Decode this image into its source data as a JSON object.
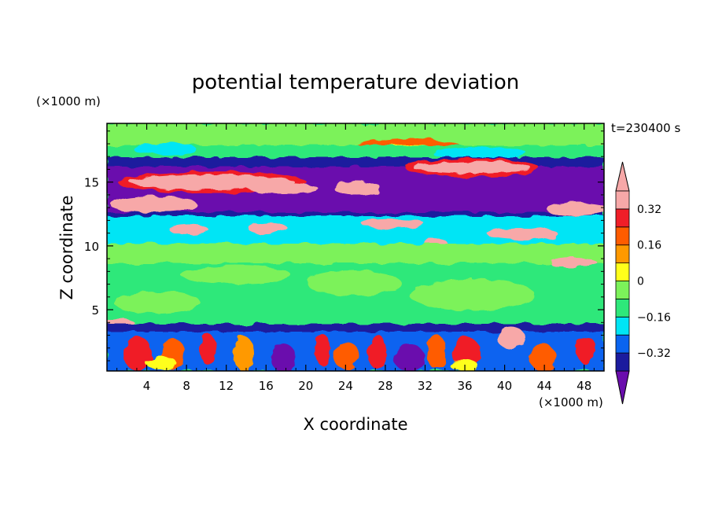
{
  "chart_data": {
    "type": "heatmap",
    "title": "potential temperature deviation",
    "xlabel": "X coordinate",
    "ylabel": "Z coordinate",
    "x_unit": "(×1000 m)",
    "y_unit": "(×1000 m)",
    "time_label": "t=230400 s",
    "xlim": [
      0,
      50
    ],
    "ylim": [
      0.2,
      19.6
    ],
    "x_ticks": [
      4,
      8,
      12,
      16,
      20,
      24,
      28,
      32,
      36,
      40,
      44,
      48
    ],
    "y_ticks": [
      5,
      10,
      15
    ],
    "x_tick_labels": [
      "4",
      "8",
      "12",
      "16",
      "20",
      "24",
      "28",
      "32",
      "36",
      "40",
      "44",
      "48"
    ],
    "y_tick_labels": [
      "5",
      "10",
      "15"
    ],
    "colorbar": {
      "levels": [
        -0.4,
        -0.32,
        -0.24,
        -0.16,
        -0.08,
        0,
        0.08,
        0.16,
        0.24,
        0.32,
        0.4
      ],
      "labels": [
        {
          "value": 0.32,
          "text": "0.32"
        },
        {
          "value": 0.16,
          "text": "0.16"
        },
        {
          "value": 0,
          "text": "0"
        },
        {
          "value": -0.16,
          "text": "−0.16"
        },
        {
          "value": -0.32,
          "text": "−0.32"
        }
      ],
      "colors": [
        "#6a0dad",
        "#1b1b9e",
        "#0a64f0",
        "#00e5f5",
        "#2ee87a",
        "#7cf25a",
        "#ffff1a",
        "#ff9900",
        "#ff5c00",
        "#f01e28",
        "#f7a8a8"
      ]
    }
  }
}
